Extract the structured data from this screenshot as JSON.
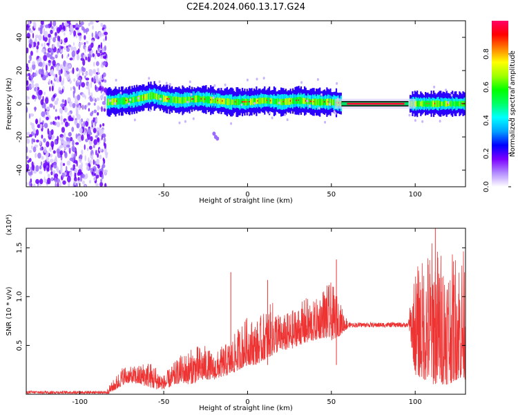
{
  "title": "C2E4.2024.060.13.17.G24",
  "chart_data": [
    {
      "type": "heatmap",
      "description_kind": "spectrogram",
      "xlabel": "Height of straight line (km)",
      "ylabel": "Frequency (Hz)",
      "xlim": [
        -132,
        130
      ],
      "ylim": [
        -50,
        50
      ],
      "xticks": [
        -100,
        -50,
        0,
        50,
        100
      ],
      "yticks": [
        -40,
        -20,
        0,
        20,
        40
      ],
      "colorbar": {
        "label": "Normalized spectral amplitude",
        "range": [
          0.0,
          1.0
        ],
        "ticks": [
          "0.0",
          "0.2",
          "0.4",
          "0.6",
          "0.8"
        ],
        "colormap": [
          "#ffffff",
          "#b38cff",
          "#7b00ff",
          "#0000ff",
          "#00a0ff",
          "#00ffff",
          "#00ff66",
          "#00ff00",
          "#a0ff00",
          "#ffff00",
          "#ff8000",
          "#ff0000",
          "#ff0066"
        ]
      },
      "regions": [
        {
          "x": [
            -132,
            -84
          ],
          "freq_center": 0,
          "freq_spread": 50,
          "amplitude": 0.1,
          "note": "noise"
        },
        {
          "x": [
            -84,
            56
          ],
          "freq_center": 2,
          "freq_spread": 6,
          "amplitude": 0.45
        },
        {
          "x": [
            56,
            96
          ],
          "freq_center": 0,
          "freq_spread": 1,
          "amplitude": 1.0
        },
        {
          "x": [
            96,
            130
          ],
          "freq_center": 0,
          "freq_spread": 5,
          "amplitude": 0.4
        }
      ],
      "centerline": [
        [
          -84,
          1
        ],
        [
          -70,
          2
        ],
        [
          -57,
          5
        ],
        [
          -50,
          3
        ],
        [
          -40,
          2
        ],
        [
          -30,
          3
        ],
        [
          -20,
          2
        ],
        [
          -10,
          1
        ],
        [
          0,
          1
        ],
        [
          10,
          2
        ],
        [
          20,
          1
        ],
        [
          30,
          2
        ],
        [
          40,
          1
        ],
        [
          50,
          1
        ],
        [
          56,
          0
        ],
        [
          96,
          0
        ],
        [
          110,
          0
        ],
        [
          130,
          0
        ]
      ]
    },
    {
      "type": "line",
      "xlabel": "Height of straight line (km)",
      "ylabel": "SNR (10 * v/v)",
      "yscale_label": "(x10⁴)",
      "xlim": [
        -132,
        130
      ],
      "ylim": [
        0,
        1.7
      ],
      "xticks": [
        -100,
        -50,
        0,
        50,
        100
      ],
      "yticks": [
        "0.5",
        "1.0",
        "1.5"
      ],
      "series": [
        {
          "color": "#ee3333",
          "envelope": {
            "x": [
              -132,
              -100,
              -84,
              -78,
              -74,
              -70,
              -65,
              -60,
              -55,
              -50,
              -45,
              -40,
              -35,
              -30,
              -25,
              -20,
              -15,
              -10,
              -5,
              0,
              5,
              10,
              15,
              20,
              25,
              30,
              35,
              40,
              45,
              50,
              55,
              60,
              70,
              80,
              90,
              96,
              100,
              105,
              110,
              115,
              120,
              125,
              130
            ],
            "base": [
              0.0,
              0.0,
              0.0,
              0.05,
              0.1,
              0.12,
              0.1,
              0.08,
              0.05,
              0.05,
              0.08,
              0.12,
              0.1,
              0.12,
              0.15,
              0.15,
              0.18,
              0.2,
              0.25,
              0.3,
              0.3,
              0.35,
              0.4,
              0.45,
              0.45,
              0.5,
              0.52,
              0.55,
              0.58,
              0.55,
              0.6,
              0.68,
              0.7,
              0.71,
              0.72,
              0.72,
              0.2,
              0.15,
              0.1,
              0.1,
              0.1,
              0.15,
              0.15
            ],
            "peak": [
              0.05,
              0.05,
              0.05,
              0.2,
              0.3,
              0.28,
              0.3,
              0.35,
              0.3,
              0.2,
              0.3,
              0.4,
              0.45,
              0.5,
              0.5,
              0.4,
              0.5,
              0.55,
              0.7,
              0.8,
              0.75,
              0.85,
              0.95,
              0.8,
              0.85,
              0.9,
              1.0,
              0.95,
              1.1,
              1.15,
              0.95,
              0.75,
              0.76,
              0.76,
              0.76,
              0.78,
              1.3,
              1.4,
              1.6,
              1.5,
              1.4,
              1.5,
              1.5
            ]
          }
        }
      ],
      "annotations": [
        {
          "x": -10,
          "y": 1.25,
          "kind": "spike"
        },
        {
          "x": 12,
          "y": 1.17,
          "kind": "spike"
        },
        {
          "x": 53,
          "y": 1.38,
          "kind": "spike"
        },
        {
          "x": 112,
          "y": 1.7,
          "kind": "spike"
        }
      ]
    }
  ]
}
